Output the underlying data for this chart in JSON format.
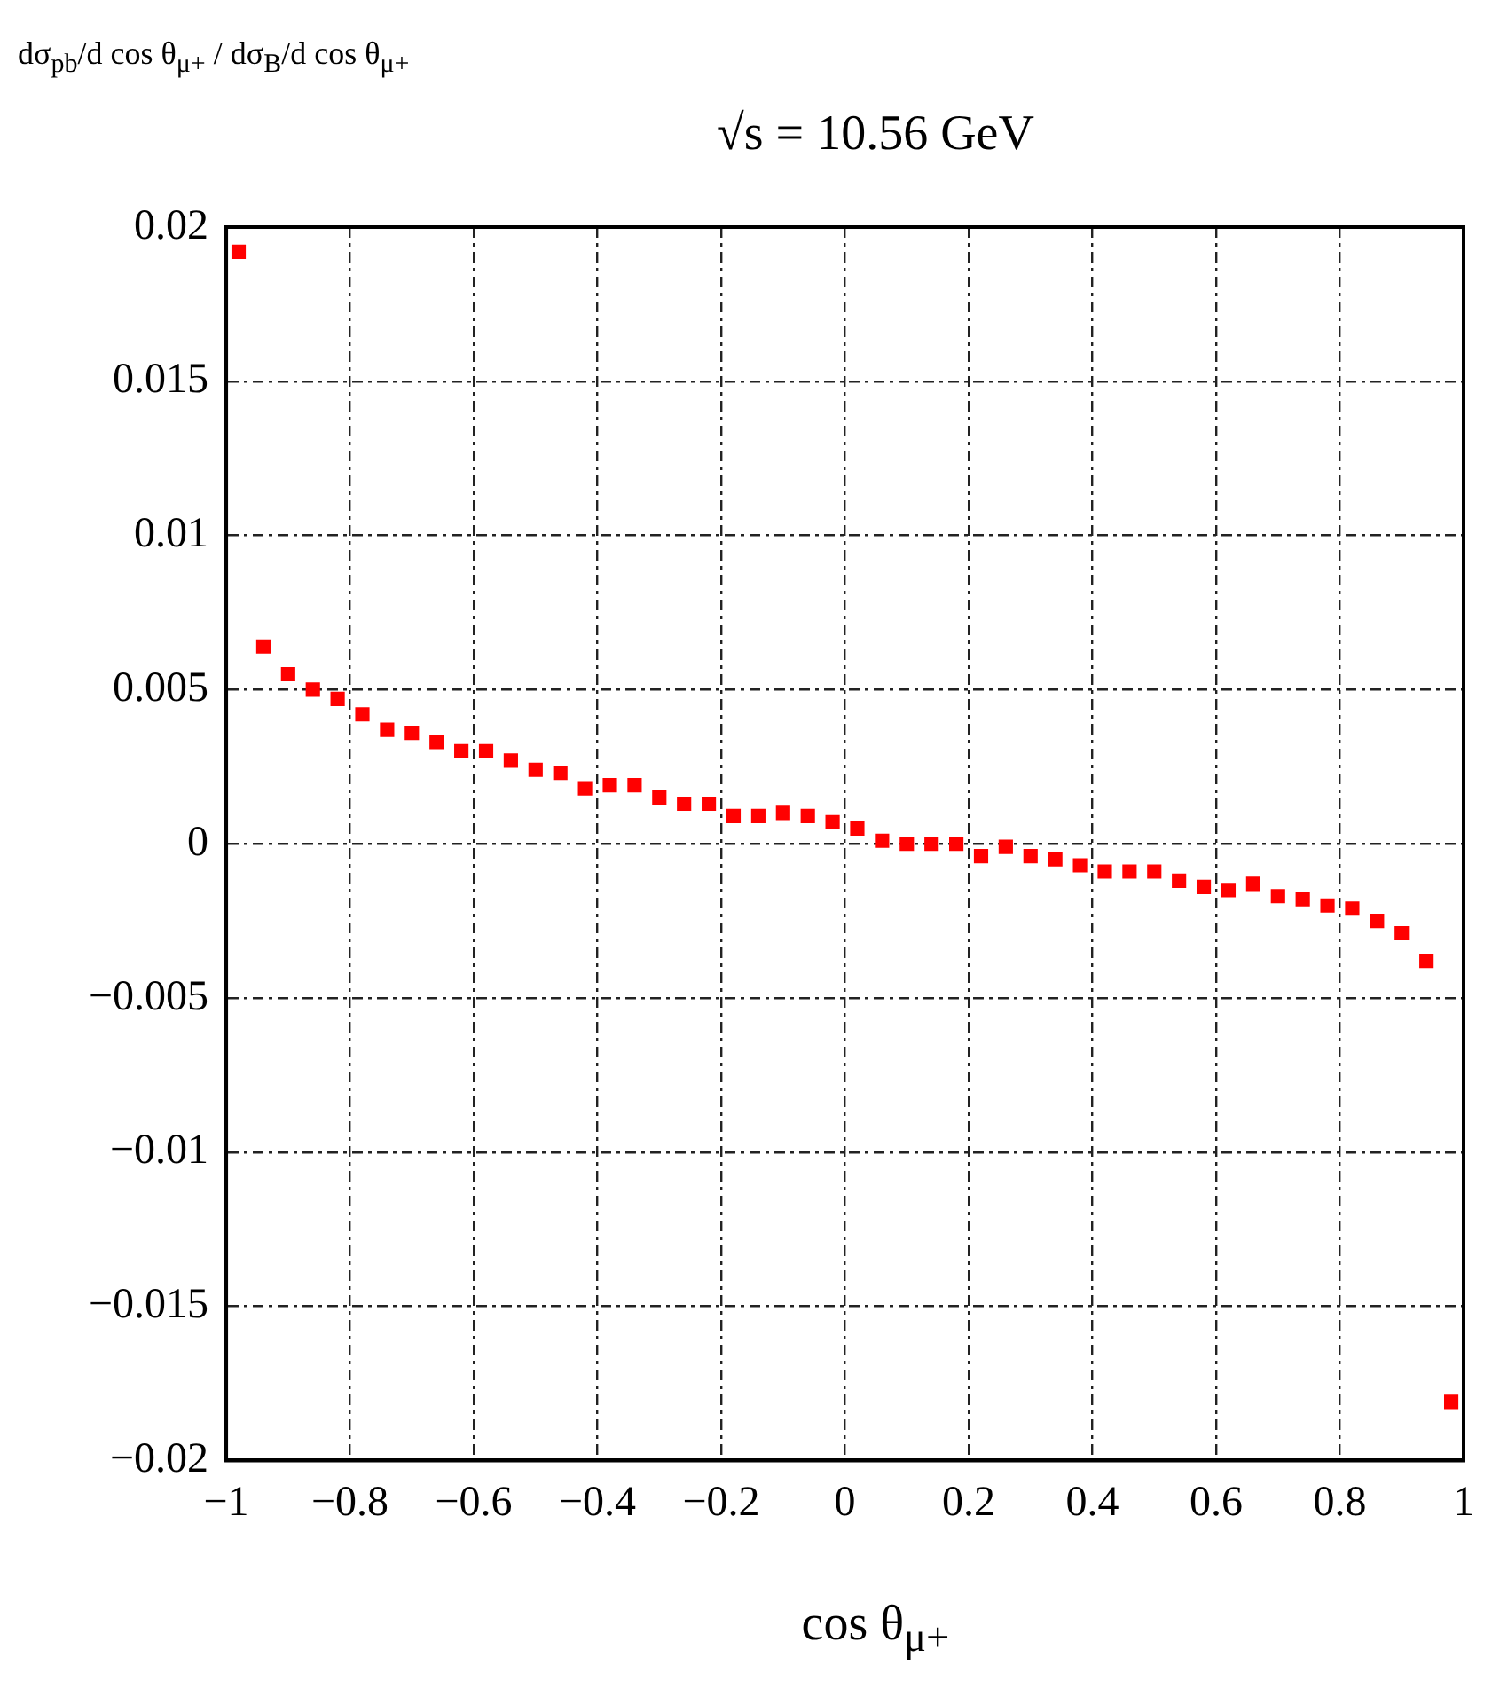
{
  "chart_data": {
    "type": "scatter",
    "title": "√s = 10.56 GeV",
    "xlabel": "cos θ$_{μ+}$",
    "ylabel": "dσ$_{pb}$/d cos θ$_{μ+}$ / dσ$_{B}$/d cos θ$_{μ+}$",
    "x": [
      -0.98,
      -0.94,
      -0.9,
      -0.86,
      -0.82,
      -0.78,
      -0.74,
      -0.7,
      -0.66,
      -0.62,
      -0.58,
      -0.54,
      -0.5,
      -0.46,
      -0.42,
      -0.38,
      -0.34,
      -0.3,
      -0.26,
      -0.22,
      -0.18,
      -0.14,
      -0.1,
      -0.06,
      -0.02,
      0.02,
      0.06,
      0.1,
      0.14,
      0.18,
      0.22,
      0.26,
      0.3,
      0.34,
      0.38,
      0.42,
      0.46,
      0.5,
      0.54,
      0.58,
      0.62,
      0.66,
      0.7,
      0.74,
      0.78,
      0.82,
      0.86,
      0.9,
      0.94,
      0.98
    ],
    "series": [
      {
        "color": "#ff0000",
        "values": [
          0.0192,
          0.0064,
          0.0055,
          0.005,
          0.0047,
          0.0042,
          0.0037,
          0.0036,
          0.0033,
          0.003,
          0.003,
          0.0027,
          0.0024,
          0.0023,
          0.0018,
          0.0019,
          0.0019,
          0.0015,
          0.0013,
          0.0013,
          0.0009,
          0.0009,
          0.001,
          0.0009,
          0.0007,
          0.0005,
          0.0001,
          0.0,
          0.0,
          0.0,
          -0.0004,
          -0.0001,
          -0.0004,
          -0.0005,
          -0.0007,
          -0.0009,
          -0.0009,
          -0.0009,
          -0.0012,
          -0.0014,
          -0.0015,
          -0.0013,
          -0.0017,
          -0.0018,
          -0.002,
          -0.0021,
          -0.0025,
          -0.0029,
          -0.0038,
          -0.0181
        ]
      }
    ],
    "xlim": [
      -1,
      1
    ],
    "ylim": [
      -0.02,
      0.02
    ],
    "xticks": [
      {
        "value": -1,
        "label": "−1"
      },
      {
        "value": -0.8,
        "label": "−0.8"
      },
      {
        "value": -0.6,
        "label": "−0.6"
      },
      {
        "value": -0.4,
        "label": "−0.4"
      },
      {
        "value": -0.2,
        "label": "−0.2"
      },
      0,
      0.2,
      0.4,
      0.6,
      0.8,
      1
    ],
    "yticks": [
      {
        "value": -0.02,
        "label": "−0.02"
      },
      {
        "value": -0.015,
        "label": "−0.015"
      },
      {
        "value": -0.01,
        "label": "−0.01"
      },
      {
        "value": -0.005,
        "label": "−0.005"
      },
      0,
      0.005,
      0.01,
      0.015,
      0.02
    ],
    "grid": true,
    "legend": false,
    "marker": "square"
  }
}
